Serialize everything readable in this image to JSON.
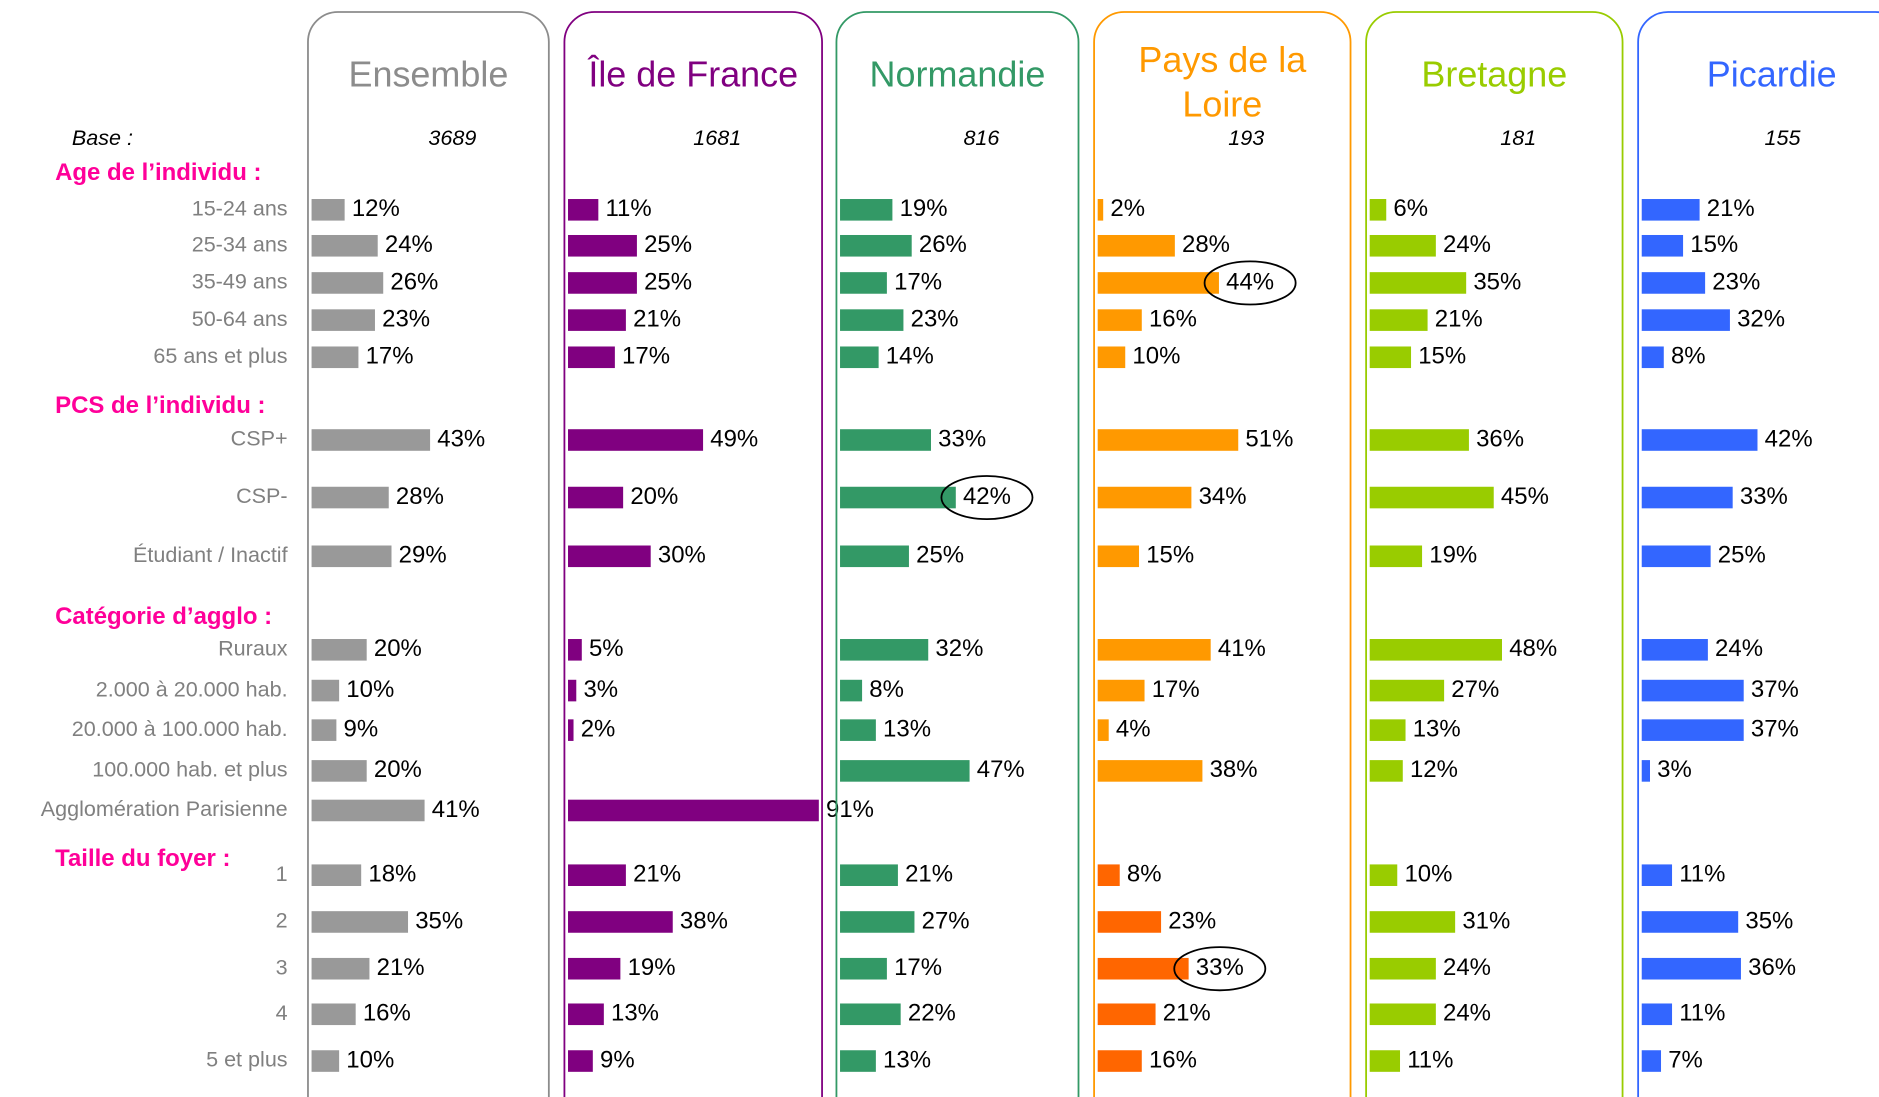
{
  "base_label": "Base :",
  "groups": [
    {
      "title": "Age de l’individu :",
      "categories": [
        "15-24 ans",
        "25-34 ans",
        "35-49 ans",
        "50-64 ans",
        "65 ans et plus"
      ]
    },
    {
      "title": "PCS de l’individu  :",
      "categories": [
        "CSP+",
        "CSP-",
        "Étudiant / Inactif"
      ]
    },
    {
      "title": "Catégorie d’agglo :",
      "categories": [
        "Ruraux",
        "2.000 à 20.000 hab.",
        "20.000 à 100.000 hab.",
        "100.000 hab. et plus",
        "Agglomération Parisienne"
      ]
    },
    {
      "title": "Taille du foyer :",
      "categories": [
        "1",
        "2",
        "3",
        "4",
        "5 et plus"
      ]
    }
  ],
  "chart_data": [
    {
      "type": "bar",
      "title": "Ensemble",
      "base": 3689,
      "color": "#999999",
      "border": "#8c8c8c",
      "group_colors": [
        "#999999",
        "#999999",
        "#999999",
        "#999999"
      ],
      "highlights": [],
      "values": [
        12,
        24,
        26,
        23,
        17,
        43,
        28,
        29,
        20,
        10,
        9,
        20,
        41,
        18,
        35,
        21,
        16,
        10
      ],
      "value_labels": [
        "12%",
        "24%",
        "26%",
        "23%",
        "17%",
        "43%",
        "28%",
        "29%",
        "20%",
        "10%",
        "9%",
        "20%",
        "41%",
        "18%",
        "35%",
        "21%",
        "16%",
        "10%"
      ]
    },
    {
      "type": "bar",
      "title": "Île de France",
      "base": 1681,
      "color": "#800080",
      "border": "#800080",
      "group_colors": [
        "#800080",
        "#800080",
        "#800080",
        "#800080"
      ],
      "highlights": [],
      "values": [
        11,
        25,
        25,
        21,
        17,
        49,
        20,
        30,
        5,
        3,
        2,
        null,
        91,
        21,
        38,
        19,
        13,
        9
      ],
      "value_labels": [
        "11%",
        "25%",
        "25%",
        "21%",
        "17%",
        "49%",
        "20%",
        "30%",
        "5%",
        "3%",
        "2%",
        null,
        "91%",
        "21%",
        "38%",
        "19%",
        "13%",
        "9%"
      ]
    },
    {
      "type": "bar",
      "title": "Normandie",
      "base": 816,
      "color": "#339966",
      "border": "#339966",
      "group_colors": [
        "#339966",
        "#339966",
        "#339966",
        "#339966"
      ],
      "highlights": [
        6
      ],
      "values": [
        19,
        26,
        17,
        23,
        14,
        33,
        42,
        25,
        32,
        8,
        13,
        47,
        null,
        21,
        27,
        17,
        22,
        13
      ],
      "value_labels": [
        "19%",
        "26%",
        "17%",
        "23%",
        "14%",
        "33%",
        "42%",
        "25%",
        "32%",
        "8%",
        "13%",
        "47%",
        null,
        "21%",
        "27%",
        "17%",
        "22%",
        "13%"
      ]
    },
    {
      "type": "bar",
      "title": "Pays de la Loire",
      "base": 193,
      "color": "#ff9900",
      "border": "#ff9900",
      "group_colors": [
        "#ff9900",
        "#ff9900",
        "#ff9900",
        "#ff6600"
      ],
      "highlights": [
        2,
        15
      ],
      "values": [
        2,
        28,
        44,
        16,
        10,
        51,
        34,
        15,
        41,
        17,
        4,
        38,
        null,
        8,
        23,
        33,
        21,
        16
      ],
      "value_labels": [
        "2%",
        "28%",
        "44%",
        "16%",
        "10%",
        "51%",
        "34%",
        "15%",
        "41%",
        "17%",
        "4%",
        "38%",
        null,
        "8%",
        "23%",
        "33%",
        "21%",
        "16%"
      ]
    },
    {
      "type": "bar",
      "title": "Bretagne",
      "base": 181,
      "color": "#99cc00",
      "border": "#99cc00",
      "group_colors": [
        "#99cc00",
        "#99cc00",
        "#99cc00",
        "#99cc00"
      ],
      "highlights": [],
      "values": [
        6,
        24,
        35,
        21,
        15,
        36,
        45,
        19,
        48,
        27,
        13,
        12,
        null,
        10,
        31,
        24,
        24,
        11
      ],
      "value_labels": [
        "6%",
        "24%",
        "35%",
        "21%",
        "15%",
        "36%",
        "45%",
        "19%",
        "48%",
        "27%",
        "13%",
        "12%",
        null,
        "10%",
        "31%",
        "24%",
        "24%",
        "11%"
      ]
    },
    {
      "type": "bar",
      "title": "Picardie",
      "base": 155,
      "color": "#3366ff",
      "border": "#3366ff",
      "group_colors": [
        "#3366ff",
        "#3366ff",
        "#3366ff",
        "#3366ff"
      ],
      "highlights": [],
      "values": [
        21,
        15,
        23,
        32,
        8,
        42,
        33,
        25,
        24,
        37,
        37,
        3,
        null,
        11,
        35,
        36,
        11,
        7
      ],
      "value_labels": [
        "21%",
        "15%",
        "23%",
        "32%",
        "8%",
        "42%",
        "33%",
        "25%",
        "24%",
        "37%",
        "37%",
        "3%",
        null,
        "11%",
        "35%",
        "36%",
        "11%",
        "7%"
      ]
    }
  ]
}
